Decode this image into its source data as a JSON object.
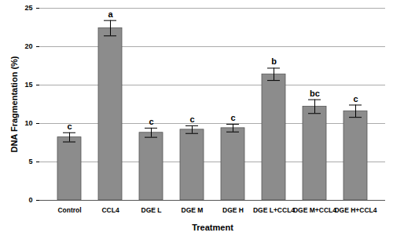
{
  "chart_data": {
    "type": "bar",
    "x_label": "Treatment",
    "y_label": "DNA Fragmentation (%)",
    "categories": [
      "Control",
      "CCL4",
      "DGE L",
      "DGE M",
      "DGE H",
      "DGE L+CCL4",
      "DGE M+CCL4",
      "DGE H+CCL4"
    ],
    "values": [
      8.2,
      22.4,
      8.8,
      9.2,
      9.4,
      16.4,
      12.2,
      11.6
    ],
    "errors": [
      0.6,
      1.0,
      0.6,
      0.5,
      0.5,
      0.8,
      0.9,
      0.8
    ],
    "annotations": [
      "c",
      "a",
      "c",
      "c",
      "c",
      "b",
      "bc",
      "c"
    ],
    "color": "#8c8c8c",
    "ylim": [
      0,
      25
    ],
    "yticks": [
      0,
      5,
      10,
      15,
      20,
      25
    ],
    "grid": true
  }
}
